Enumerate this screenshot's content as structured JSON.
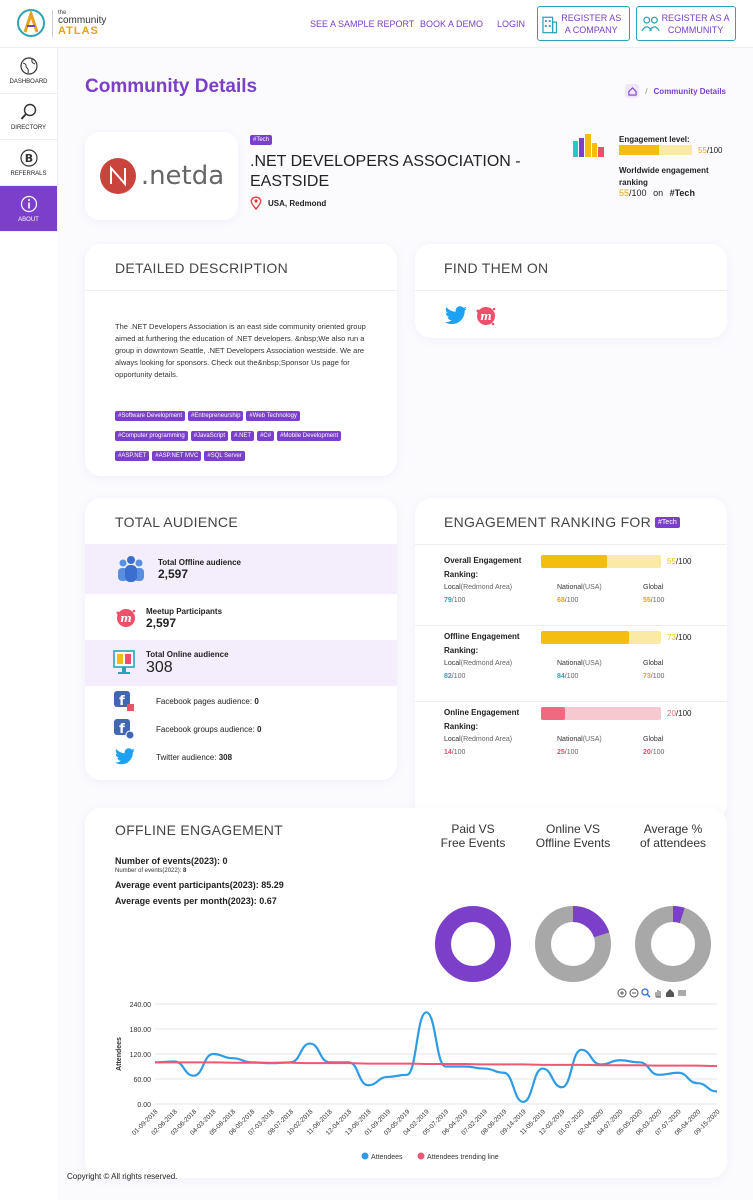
{
  "header": {
    "logo": {
      "the": "the",
      "community": "community",
      "atlas": "ATLAS"
    },
    "nav": [
      {
        "label": "SEE A SAMPLE REPORT"
      },
      {
        "label": "BOOK A DEMO"
      },
      {
        "label": "LOGIN"
      }
    ],
    "register_company": "REGISTER AS A COMPANY",
    "register_community": "REGISTER AS A COMMUNITY"
  },
  "sidebar": {
    "items": [
      {
        "label": "DASHBOARD",
        "icon": "globe-icon"
      },
      {
        "label": "DIRECTORY",
        "icon": "magnifier-icon"
      },
      {
        "label": "REFERRALS",
        "icon": "bitcoin-icon"
      },
      {
        "label": "ABOUT",
        "icon": "info-icon"
      }
    ]
  },
  "page": {
    "title": "Community Details",
    "breadcrumb": "Community Details"
  },
  "community": {
    "logo_text": ".netda",
    "tag": "#Tech",
    "name": ".NET DEVELOPERS ASSOCIATION - EASTSIDE",
    "location": "USA, Redmond",
    "engagement_label": "Engagement level:",
    "engagement_value": 55,
    "engagement_value_text": "55",
    "engagement_max_text": "/100",
    "ranking_label": "Worldwide engagement ranking",
    "ranking_value_text": "55",
    "ranking_max_text": "/100",
    "ranking_on": "on",
    "ranking_tag": "#Tech"
  },
  "description": {
    "heading": "DETAILED DESCRIPTION",
    "text": "The .NET Developers Association is an east side community oriented group aimed at furthering the education of .NET developers. &nbsp;We also run a group in downtown Seattle, .NET Developers Association westside. We are always looking for sponsors. Check out the&nbsp;Sponsor Us page for opportunity details.",
    "tags": [
      "#Software Development",
      "#Entrepreneurship",
      "#Web Technology",
      "#Computer programming",
      "#JavaScript",
      "#.NET",
      "#C#",
      "#Mobile Development",
      "#ASP.NET",
      "#ASP.NET MVC",
      "#SQL Server"
    ]
  },
  "find": {
    "heading": "FIND THEM ON"
  },
  "audience": {
    "heading": "TOTAL AUDIENCE",
    "offline_label": "Total Offline audience",
    "offline_value": "2,597",
    "meetup_label": "Meetup Participants",
    "meetup_value": "2,597",
    "online_label": "Total Online audience",
    "online_value": "308",
    "fb_pages_label": "Facebook pages audience:",
    "fb_pages_value": "0",
    "fb_groups_label": "Facebook groups audience:",
    "fb_groups_value": "0",
    "twitter_label": "Twitter audience:",
    "twitter_value": "308"
  },
  "engagement_ranking": {
    "heading": "ENGAGEMENT RANKING FOR",
    "tag": "#Tech",
    "rows": [
      {
        "title": "Overall Engagement",
        "title2": "Ranking:",
        "value": 55,
        "value_text": "55",
        "max": "/100",
        "color": "#f5bd10",
        "bg": "#fbeaa6",
        "local_label": "Local",
        "local_area": "(Redmond Area)",
        "local_value": "79",
        "local_color": "#2aa3b7",
        "national_label": "National",
        "national_area": "(USA)",
        "national_value": "68",
        "national_color": "#e6a21c",
        "global_label": "Global",
        "global_value": "55",
        "global_color": "#e6a21c"
      },
      {
        "title": "Offline Engagement",
        "title2": "Ranking:",
        "value": 73,
        "value_text": "73",
        "max": "/100",
        "color": "#f5bd10",
        "bg": "#fbeaa6",
        "local_label": "Local",
        "local_area": "(Redmond Area)",
        "local_value": "82",
        "local_color": "#2aa3b7",
        "national_label": "National",
        "national_area": "(USA)",
        "national_value": "84",
        "national_color": "#2aa3b7",
        "global_label": "Global",
        "global_value": "73",
        "global_color": "#e6a21c"
      },
      {
        "title": "Online Engagement",
        "title2": "Ranking:",
        "value": 20,
        "value_text": "20",
        "max": "/100",
        "color": "#ef6a80",
        "bg": "#f8c8d0",
        "local_label": "Local",
        "local_area": "(Redmond Area)",
        "local_value": "14",
        "local_color": "#ef4f6a",
        "national_label": "National",
        "national_area": "(USA)",
        "national_value": "25",
        "national_color": "#ef4f6a",
        "global_label": "Global",
        "global_value": "20",
        "global_color": "#ef4f6a"
      }
    ]
  },
  "offline": {
    "heading": "OFFLINE ENGAGEMENT",
    "events_label": "Number of events(2023):",
    "events_value": "0",
    "events_prev_label": "Number of events(2022):",
    "events_prev_value": "8",
    "avg_participants_label": "Average event participants(2023):",
    "avg_participants_value": "85.29",
    "avg_per_month_label": "Average events per month(2023):",
    "avg_per_month_value": "0.67",
    "donuts": [
      {
        "title1": "Paid VS",
        "title2": "Free Events",
        "fraction": 0.0
      },
      {
        "title1": "Online VS",
        "title2": "Offline Events",
        "fraction": 0.2
      },
      {
        "title1": "Average %",
        "title2": "of attendees",
        "fraction": 0.05
      }
    ],
    "donut_color_fg": "#7b3fc9",
    "donut_color_bg": "#a8a8a8"
  },
  "chart_data": {
    "type": "line",
    "ylabel": "Attendees",
    "ylim": [
      0,
      240
    ],
    "yticks": [
      "0.00",
      "60.00",
      "120.00",
      "180.00",
      "240.00"
    ],
    "x": [
      "01-09-2018",
      "02-06-2018",
      "03-06-2018",
      "04-03-2018",
      "05-08-2018",
      "06-05-2018",
      "07-03-2018",
      "08-07-2018",
      "10-02-2018",
      "11-06-2018",
      "12-04-2018",
      "13-06-2018",
      "01-09-2019",
      "03-05-2019",
      "04-02-2019",
      "05-07-2019",
      "06-04-2019",
      "07-02-2019",
      "08-06-2019",
      "09-14-2019",
      "11-05-2019",
      "12-03-2019",
      "01-07-2020",
      "02-04-2020",
      "04-07-2020",
      "05-05-2020",
      "06-03-2020",
      "07-07-2020",
      "08-04-2020",
      "09-15-2020"
    ],
    "series": [
      {
        "name": "Attendees",
        "color": "#2e9be5",
        "values": [
          100,
          102,
          68,
          120,
          110,
          100,
          98,
          100,
          145,
          100,
          100,
          45,
          65,
          70,
          220,
          90,
          90,
          85,
          75,
          5,
          85,
          40,
          130,
          95,
          105,
          100,
          70,
          75,
          50,
          30
        ]
      },
      {
        "name": "Attendees trending line",
        "color": "#ef5874",
        "values": [
          100,
          100,
          100,
          100,
          99,
          99,
          99,
          99,
          98,
          98,
          98,
          97,
          97,
          97,
          96,
          96,
          96,
          95,
          95,
          95,
          94,
          94,
          94,
          93,
          93,
          93,
          92,
          92,
          92,
          91
        ]
      }
    ],
    "toolbar_icons": [
      "zoom-in-icon",
      "zoom-out-icon",
      "magnify-icon",
      "pan-icon",
      "home-icon",
      "menu-icon"
    ]
  },
  "footer": {
    "text": "Copyright © All rights reserved."
  }
}
